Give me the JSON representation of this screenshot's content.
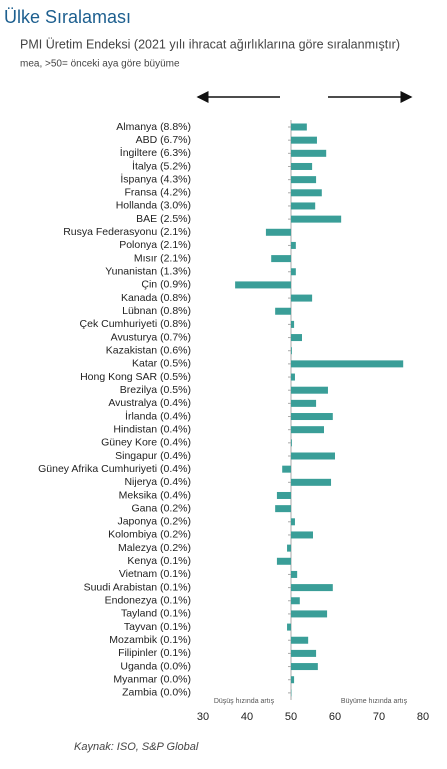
{
  "chart_data": {
    "type": "hbar",
    "title": "Ülke Sıralaması",
    "subtitle": "PMI Üretim Endeksi (2021 yılı ihracat ağırlıklarına göre sıralanmıştır)",
    "note": "mea, >50= önceki aya göre büyüme",
    "categories": [
      "Almanya (8.8%)",
      "ABD (6.7%)",
      "İngiltere (6.3%)",
      "İtalya (5.2%)",
      "İspanya (4.3%)",
      "Fransa (4.2%)",
      "Hollanda (3.0%)",
      "BAE (2.5%)",
      "Rusya Federasyonu (2.1%)",
      "Polonya (2.1%)",
      "Mısır (2.1%)",
      "Yunanistan (1.3%)",
      "Çin (0.9%)",
      "Kanada (0.8%)",
      "Lübnan (0.8%)",
      "Çek Cumhuriyeti (0.8%)",
      "Avusturya (0.7%)",
      "Kazakistan (0.6%)",
      "Katar (0.5%)",
      "Hong Kong SAR (0.5%)",
      "Brezilya (0.5%)",
      "Avustralya (0.4%)",
      "İrlanda (0.4%)",
      "Hindistan (0.4%)",
      "Güney Kore (0.4%)",
      "Singapur (0.4%)",
      "Güney Afrika Cumhuriyeti (0.4%)",
      "Nijerya (0.4%)",
      "Meksika (0.4%)",
      "Gana (0.2%)",
      "Japonya (0.2%)",
      "Kolombiya (0.2%)",
      "Malezya (0.2%)",
      "Kenya (0.1%)",
      "Vietnam (0.1%)",
      "Suudi Arabistan (0.1%)",
      "Endonezya (0.1%)",
      "Tayland (0.1%)",
      "Tayvan (0.1%)",
      "Mozambik (0.1%)",
      "Filipinler (0.1%)",
      "Uganda (0.0%)",
      "Myanmar (0.0%)",
      "Zambia (0.0%)"
    ],
    "values": [
      53.6,
      55.9,
      58.0,
      54.8,
      55.7,
      57.0,
      55.5,
      61.4,
      44.3,
      51.1,
      45.5,
      51.1,
      37.3,
      54.8,
      46.4,
      50.7,
      52.5,
      50.2,
      75.5,
      50.9,
      58.4,
      55.7,
      59.5,
      57.5,
      50.2,
      60.0,
      48.0,
      59.1,
      46.8,
      46.4,
      50.9,
      55.0,
      49.1,
      46.8,
      51.4,
      59.5,
      52.0,
      58.2,
      49.1,
      53.9,
      55.7,
      56.1,
      50.7,
      50.1
    ],
    "color": "#3a9e98",
    "baseline": 50,
    "xlim": [
      30,
      80
    ],
    "xticks": [
      30,
      40,
      50,
      60,
      70,
      80
    ],
    "annotations": [
      "Düşüş hızında artış",
      "Büyüme hızında artış"
    ],
    "source": "Kaynak: ISO, S&P Global"
  }
}
